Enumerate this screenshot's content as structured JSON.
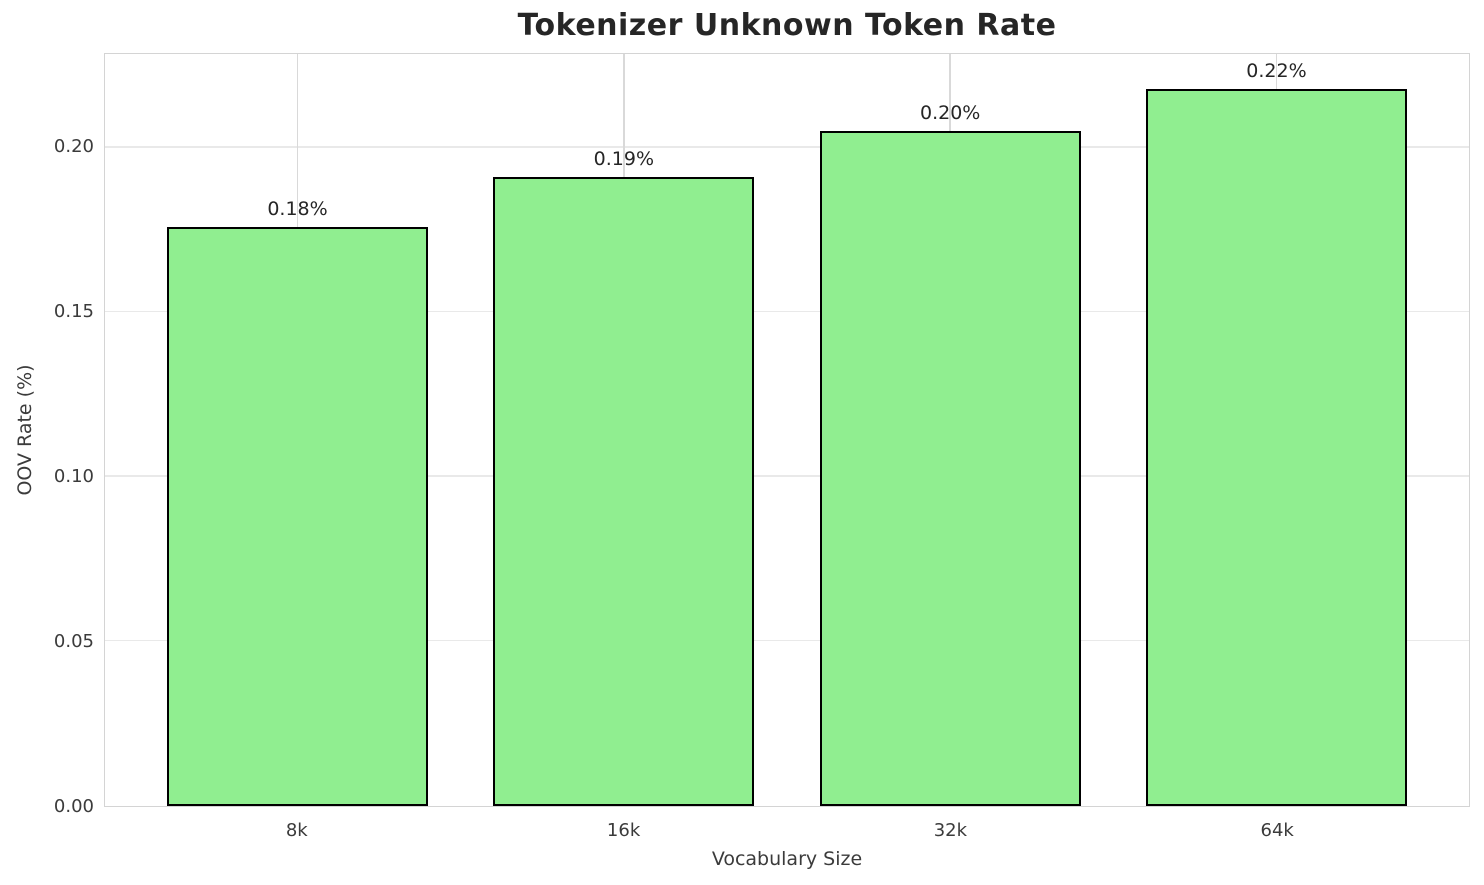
{
  "chart_data": {
    "type": "bar",
    "title": "Tokenizer Unknown Token Rate",
    "xlabel": "Vocabulary Size",
    "ylabel": "OOV Rate (%)",
    "categories": [
      "8k",
      "16k",
      "32k",
      "64k"
    ],
    "values": [
      0.176,
      0.191,
      0.205,
      0.218
    ],
    "bar_labels": [
      "0.18%",
      "0.19%",
      "0.20%",
      "0.22%"
    ],
    "ylim": [
      0,
      0.2285
    ],
    "yticks": [
      0,
      0.05,
      0.1,
      0.15,
      0.2
    ],
    "ytick_labels": [
      "0.00",
      "0.05",
      "0.10",
      "0.15",
      "0.20"
    ],
    "bar_width_fraction": 0.8,
    "grid": true,
    "legend": "none",
    "colors": {
      "bar_fill": "#90EE90",
      "bar_edge": "#000000",
      "hgrid": "#e9e9e9",
      "vgrid": "#d9d9d9",
      "spine": "#d4d4d4",
      "title_text": "#262626",
      "tick_text": "#3b3b3b"
    }
  }
}
